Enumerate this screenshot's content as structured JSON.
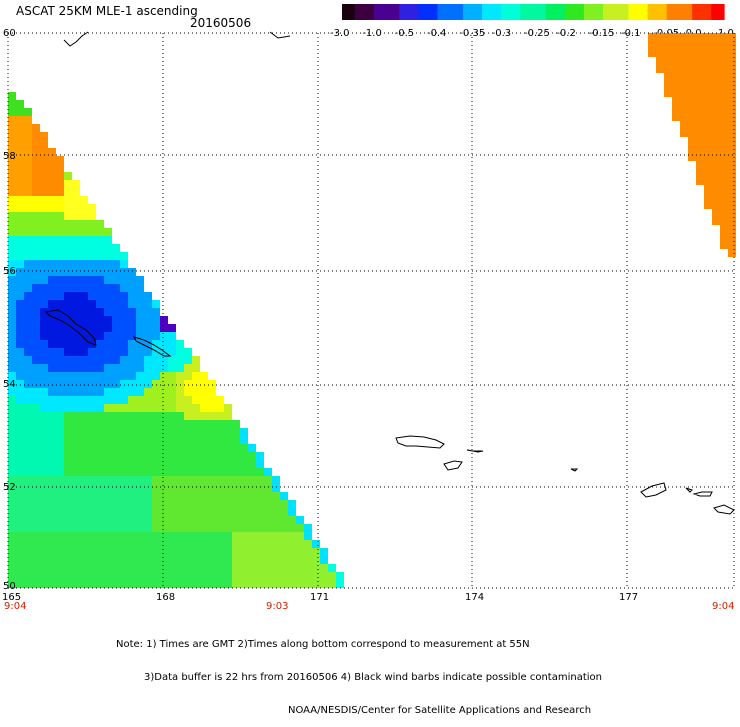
{
  "header": {
    "title": "ASCAT 25KM MLE-1 ascending",
    "date": "20160506"
  },
  "colorbar": {
    "labels": [
      "-3.0",
      "-1.0",
      "-0.5",
      "-0.4",
      "-0.35",
      "-0.3",
      "-0.25",
      "-0.2",
      "-0.15",
      "-0.1",
      "-0.05",
      "0.0",
      "1.0"
    ],
    "colors": [
      "#300020",
      "#4a007a",
      "#2a20d0",
      "#0040ff",
      "#0080ff",
      "#00c8ff",
      "#00ffe0",
      "#00f080",
      "#40e020",
      "#a0f020",
      "#ffff00",
      "#ffa000",
      "#ff2000"
    ]
  },
  "axes": {
    "lat_labels": [
      "60",
      "58",
      "56",
      "54",
      "52",
      "50"
    ],
    "lon_labels": [
      "165",
      "168",
      "171",
      "174",
      "177"
    ],
    "time_labels": [
      "9:04",
      "9:03",
      "9:04"
    ]
  },
  "notes": {
    "line1": "Note: 1) Times are GMT 2)Times along bottom correspond to measurement at 55N",
    "line2": "3)Data buffer is 22 hrs from 20160506 4) Black wind barbs indicate possible contamination",
    "line3": "NOAA/NESDIS/Center for Satellite Applications and Research"
  },
  "colors": {
    "grid": "#000000",
    "coast": "#000000"
  }
}
